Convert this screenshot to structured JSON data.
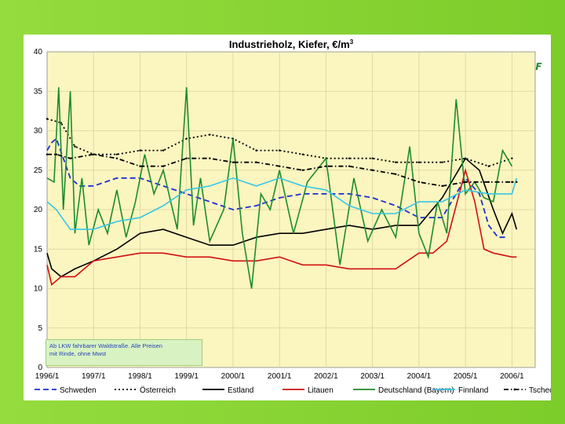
{
  "chart_data": {
    "type": "line",
    "title": "Industrieholz, Kiefer, €/m",
    "title_superscript": "3",
    "ylim": [
      0,
      40
    ],
    "yticks": [
      "0",
      "5",
      "10",
      "15",
      "20",
      "25",
      "30",
      "35",
      "40"
    ],
    "xticks": [
      "1996/1",
      "1997/1",
      "1998/1",
      "1999/1",
      "2000/1",
      "2001/1",
      "2002/1",
      "2003/1",
      "2004/1",
      "2005/1",
      "2006/1"
    ],
    "xrange": [
      1996.0,
      2006.5
    ],
    "grid": true,
    "legend_position": "bottom",
    "note": [
      "Ab LKW fahrbarer Waldstraße. Alle Preisen",
      "mit Rinde, ohne Mwst"
    ],
    "series": [
      {
        "name": "Schweden",
        "color": "#1a2fd6",
        "style": "dashed",
        "x": [
          1996.0,
          1996.1,
          1996.2,
          1996.35,
          1996.5,
          1996.7,
          1997.0,
          1997.5,
          1998.0,
          1998.5,
          1999.0,
          1999.5,
          2000.0,
          2000.5,
          2001.0,
          2001.5,
          2002.0,
          2002.5,
          2003.0,
          2003.5,
          2004.0,
          2004.5,
          2005.0,
          2005.3,
          2005.5,
          2005.7,
          2005.9
        ],
        "y": [
          27.5,
          28.5,
          29,
          26.5,
          24,
          23,
          23,
          24,
          24,
          23,
          22,
          21,
          20,
          20.5,
          21.5,
          22,
          22,
          22,
          21.5,
          20.5,
          19,
          19,
          24,
          22,
          18,
          16.5,
          16.5
        ]
      },
      {
        "name": "Österreich",
        "color": "#000000",
        "style": "dotted",
        "x": [
          1996.0,
          1996.3,
          1996.6,
          1997.0,
          1997.5,
          1998.0,
          1998.5,
          1999.0,
          1999.5,
          2000.0,
          2000.5,
          2001.0,
          2001.5,
          2002.0,
          2002.5,
          2003.0,
          2003.5,
          2004.0,
          2004.5,
          2005.0,
          2005.5,
          2006.0
        ],
        "y": [
          31.5,
          31,
          28,
          27,
          27,
          27.5,
          27.5,
          29,
          29.5,
          29,
          27.5,
          27.5,
          27,
          26.5,
          26.5,
          26.5,
          26,
          26,
          26,
          26.5,
          25.5,
          26.5
        ]
      },
      {
        "name": "Estland",
        "color": "#000000",
        "style": "solid",
        "x": [
          1996.0,
          1996.1,
          1996.3,
          1996.6,
          1997.0,
          1997.5,
          1998.0,
          1998.5,
          1999.0,
          1999.5,
          2000.0,
          2000.5,
          2001.0,
          2001.5,
          2002.0,
          2002.5,
          2003.0,
          2003.5,
          2004.0,
          2004.5,
          2005.0,
          2005.3,
          2005.6,
          2005.8,
          2006.0,
          2006.1
        ],
        "y": [
          14.5,
          12.5,
          11.5,
          12.5,
          13.5,
          15,
          17,
          17.5,
          16.5,
          15.5,
          15.5,
          16.5,
          17,
          17,
          17.5,
          18,
          17.5,
          18,
          18,
          21.5,
          26.5,
          25,
          20,
          17,
          19.5,
          17.5
        ]
      },
      {
        "name": "Litauen",
        "color": "#d01010",
        "style": "solid",
        "x": [
          1996.0,
          1996.1,
          1996.3,
          1996.6,
          1997.0,
          1997.5,
          1998.0,
          1998.5,
          1999.0,
          1999.5,
          2000.0,
          2000.5,
          2001.0,
          2001.5,
          2002.0,
          2002.5,
          2003.0,
          2003.5,
          2004.0,
          2004.3,
          2004.6,
          2005.0,
          2005.2,
          2005.4,
          2005.6,
          2006.0,
          2006.1
        ],
        "y": [
          13,
          10.5,
          11.5,
          11.5,
          13.5,
          14,
          14.5,
          14.5,
          14,
          14,
          13.5,
          13.5,
          14,
          13,
          13,
          12.5,
          12.5,
          12.5,
          14.5,
          14.5,
          16,
          25,
          21,
          15,
          14.5,
          14,
          14
        ]
      },
      {
        "name": "Deutschland (Bayern)",
        "color": "#1e8c2a",
        "style": "solid",
        "x": [
          1996.0,
          1996.15,
          1996.25,
          1996.35,
          1996.5,
          1996.6,
          1996.75,
          1996.9,
          1997.1,
          1997.3,
          1997.5,
          1997.7,
          1997.9,
          1998.1,
          1998.3,
          1998.5,
          1998.8,
          1999.0,
          1999.15,
          1999.3,
          1999.5,
          1999.8,
          2000.0,
          2000.2,
          2000.4,
          2000.6,
          2000.8,
          2001.0,
          2001.3,
          2001.6,
          2002.0,
          2002.3,
          2002.6,
          2002.9,
          2003.2,
          2003.5,
          2003.8,
          2004.0,
          2004.2,
          2004.4,
          2004.6,
          2004.8,
          2005.0,
          2005.2,
          2005.4,
          2005.6,
          2005.8,
          2006.0
        ],
        "y": [
          24,
          23.5,
          35.5,
          20,
          35,
          17,
          24,
          15.5,
          20,
          17,
          22.5,
          16.5,
          21,
          27,
          22,
          25,
          17.5,
          35.5,
          18,
          24,
          16,
          20,
          29,
          17,
          10,
          22,
          20,
          25,
          17,
          23.5,
          26.5,
          13,
          24,
          16,
          20,
          16.5,
          28,
          17,
          14,
          21,
          17,
          34,
          22,
          23.5,
          21.5,
          21,
          27.5,
          25.5
        ]
      },
      {
        "name": "Finnland",
        "color": "#36c6e6",
        "style": "solid",
        "x": [
          1996.0,
          1996.2,
          1996.5,
          1997.0,
          1997.5,
          1998.0,
          1998.5,
          1999.0,
          1999.5,
          2000.0,
          2000.5,
          2001.0,
          2001.5,
          2002.0,
          2002.5,
          2003.0,
          2003.5,
          2004.0,
          2004.5,
          2005.0,
          2005.5,
          2006.0,
          2006.1
        ],
        "y": [
          21,
          20,
          17.5,
          17.5,
          18.5,
          19,
          20.5,
          22.5,
          23,
          24,
          23,
          24,
          23,
          22.5,
          20.5,
          19.5,
          19.5,
          21,
          21,
          22.5,
          22,
          22,
          24
        ]
      },
      {
        "name": "Tschechien",
        "color": "#000000",
        "style": "dash-dot",
        "x": [
          1996.0,
          1996.2,
          1996.5,
          1997.0,
          1997.5,
          1998.0,
          1998.5,
          1999.0,
          1999.5,
          2000.0,
          2000.5,
          2001.0,
          2001.5,
          2002.0,
          2002.5,
          2003.0,
          2003.5,
          2004.0,
          2004.5,
          2005.0,
          2005.5,
          2006.0,
          2006.1
        ],
        "y": [
          27,
          27,
          26.5,
          27,
          26.5,
          25.5,
          25.5,
          26.5,
          26.5,
          26,
          26,
          25.5,
          25,
          25.5,
          25.5,
          25,
          24.5,
          23.5,
          23,
          23.5,
          23.5,
          23.5,
          23.5
        ]
      }
    ]
  }
}
